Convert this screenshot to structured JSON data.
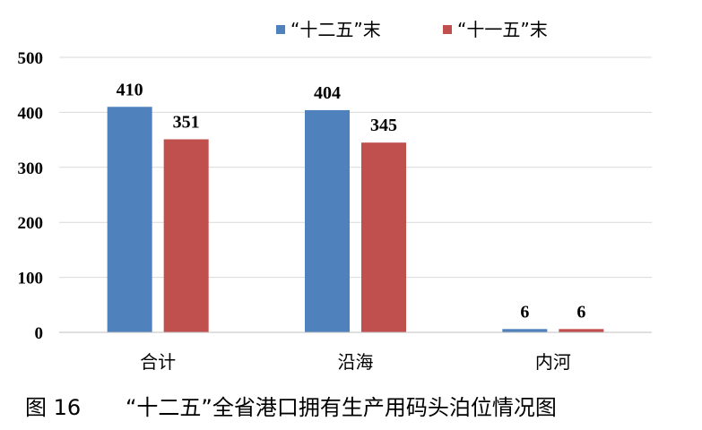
{
  "chart_data": {
    "type": "bar",
    "categories": [
      "合计",
      "沿海",
      "内河"
    ],
    "series": [
      {
        "name": "“十二五”末",
        "values": [
          410,
          404,
          6
        ],
        "color": "#4f81bd"
      },
      {
        "name": "“十一五”末",
        "values": [
          351,
          345,
          6
        ],
        "color": "#c0504d"
      }
    ],
    "ylim": [
      0,
      500
    ],
    "yticks": [
      0,
      100,
      200,
      300,
      400,
      500
    ],
    "grid": true,
    "legend": "top-right",
    "data_labels": true
  },
  "caption": {
    "figure_no": "图 16",
    "title": "“十二五”全省港口拥有生产用码头泊位情况图"
  }
}
